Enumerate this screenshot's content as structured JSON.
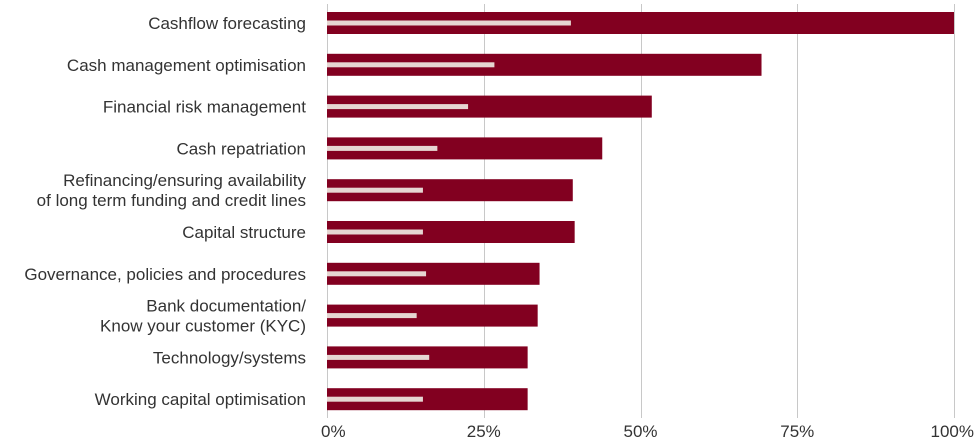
{
  "chart_data": {
    "type": "bar",
    "orientation": "horizontal",
    "categories": [
      [
        "Cashflow forecasting"
      ],
      [
        "Cash management optimisation"
      ],
      [
        "Financial risk management"
      ],
      [
        "Cash repatriation"
      ],
      [
        "Refinancing/ensuring availability",
        "of long term funding and credit lines"
      ],
      [
        "Capital structure"
      ],
      [
        "Governance, policies and procedures"
      ],
      [
        "Bank documentation/",
        "Know your customer (KYC)"
      ],
      [
        "Technology/systems"
      ],
      [
        "Working capital optimisation"
      ]
    ],
    "series": [
      {
        "values": [
          100,
          69.3,
          51.8,
          43.9,
          39.2,
          39.5,
          33.9,
          33.6,
          32.0,
          32.0
        ]
      },
      {
        "values": [
          38.9,
          26.7,
          22.5,
          17.6,
          15.3,
          15.3,
          15.8,
          14.3,
          16.3,
          15.3
        ]
      }
    ],
    "colors": [
      "#820020",
      "#e6d6d2"
    ],
    "xlim": [
      0,
      100
    ],
    "xticks": [
      0,
      25,
      50,
      75,
      100
    ],
    "xtick_labels": [
      "0%",
      "25%",
      "50%",
      "75%",
      "100%"
    ],
    "grid": true
  }
}
